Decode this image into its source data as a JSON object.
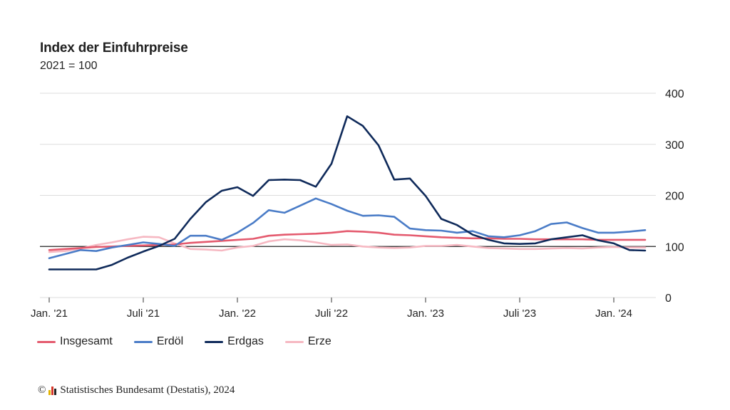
{
  "chart_data": {
    "type": "line",
    "title": "Index der Einfuhrpreise",
    "subtitle": "2021 = 100",
    "x_tick_labels": [
      "Jan. '21",
      "Juli '21",
      "Jan. '22",
      "Juli '22",
      "Jan. '23",
      "Juli '23",
      "Jan. '24"
    ],
    "y_ticks": [
      0,
      100,
      200,
      300,
      400
    ],
    "ylim": [
      0,
      400
    ],
    "reference_line": 100,
    "x": [
      "2021-01",
      "2021-02",
      "2021-03",
      "2021-04",
      "2021-05",
      "2021-06",
      "2021-07",
      "2021-08",
      "2021-09",
      "2021-10",
      "2021-11",
      "2021-12",
      "2022-01",
      "2022-02",
      "2022-03",
      "2022-04",
      "2022-05",
      "2022-06",
      "2022-07",
      "2022-08",
      "2022-09",
      "2022-10",
      "2022-11",
      "2022-12",
      "2023-01",
      "2023-02",
      "2023-03",
      "2023-04",
      "2023-05",
      "2023-06",
      "2023-07",
      "2023-08",
      "2023-09",
      "2023-10",
      "2023-11",
      "2023-12",
      "2024-01",
      "2024-02",
      "2024-03"
    ],
    "series": [
      {
        "name": "Insgesamt",
        "color": "#e45a6e",
        "values": [
          93,
          95,
          97,
          99,
          100,
          101,
          102,
          103,
          104,
          107,
          109,
          111,
          113,
          115,
          121,
          123,
          124,
          125,
          127,
          130,
          129,
          127,
          123,
          122,
          120,
          118,
          117,
          116,
          116,
          115,
          115,
          114,
          114,
          114,
          114,
          113,
          113,
          113,
          113
        ]
      },
      {
        "name": "Erdöl",
        "color": "#4a7cc7",
        "values": [
          77,
          85,
          93,
          91,
          98,
          103,
          108,
          105,
          101,
          121,
          121,
          113,
          127,
          146,
          171,
          166,
          180,
          194,
          183,
          170,
          160,
          161,
          158,
          135,
          132,
          131,
          127,
          130,
          120,
          118,
          122,
          130,
          144,
          147,
          136,
          127,
          127,
          129,
          132
        ]
      },
      {
        "name": "Erdgas",
        "color": "#0f2a5a",
        "values": [
          55,
          55,
          55,
          55,
          64,
          78,
          90,
          101,
          115,
          154,
          187,
          209,
          216,
          199,
          230,
          231,
          230,
          217,
          262,
          355,
          336,
          298,
          231,
          233,
          199,
          154,
          142,
          123,
          113,
          106,
          105,
          106,
          114,
          118,
          122,
          112,
          106,
          93,
          92
        ]
      },
      {
        "name": "Erze",
        "color": "#f6b8c2",
        "values": [
          89,
          91,
          96,
          103,
          108,
          114,
          119,
          118,
          106,
          95,
          94,
          92,
          98,
          101,
          110,
          114,
          112,
          108,
          103,
          104,
          100,
          98,
          97,
          98,
          101,
          101,
          103,
          100,
          97,
          96,
          95,
          95,
          96,
          97,
          96,
          98,
          99,
          98,
          98
        ]
      }
    ]
  },
  "source": {
    "copyright": "©",
    "text": "Statistisches Bundesamt (Destatis), 2024",
    "logo_colors": [
      "#e3b400",
      "#d4372a",
      "#222222"
    ]
  }
}
